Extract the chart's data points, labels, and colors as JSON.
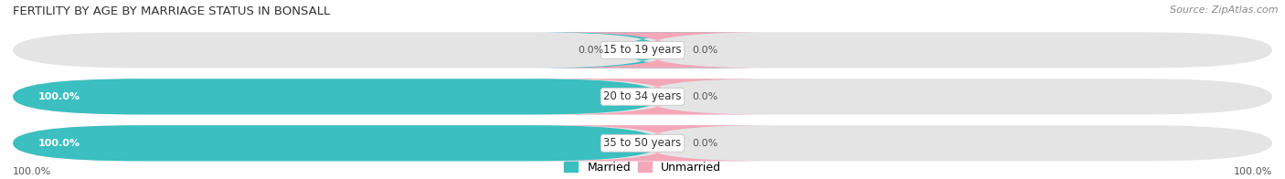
{
  "title": "FERTILITY BY AGE BY MARRIAGE STATUS IN BONSALL",
  "source": "Source: ZipAtlas.com",
  "categories": [
    "15 to 19 years",
    "20 to 34 years",
    "35 to 50 years"
  ],
  "married_values": [
    0.0,
    100.0,
    100.0
  ],
  "unmarried_values": [
    0.0,
    0.0,
    0.0
  ],
  "married_color": "#3bbfc0",
  "unmarried_color": "#f4a7b9",
  "bar_bg_color": "#e4e4e4",
  "title_fontsize": 9.5,
  "source_fontsize": 8,
  "value_fontsize": 8,
  "legend_fontsize": 9,
  "category_fontsize": 8.5,
  "background_color": "#ffffff",
  "legend_married": "Married",
  "legend_unmarried": "Unmarried",
  "bottom_left_label": "100.0%",
  "bottom_right_label": "100.0%"
}
